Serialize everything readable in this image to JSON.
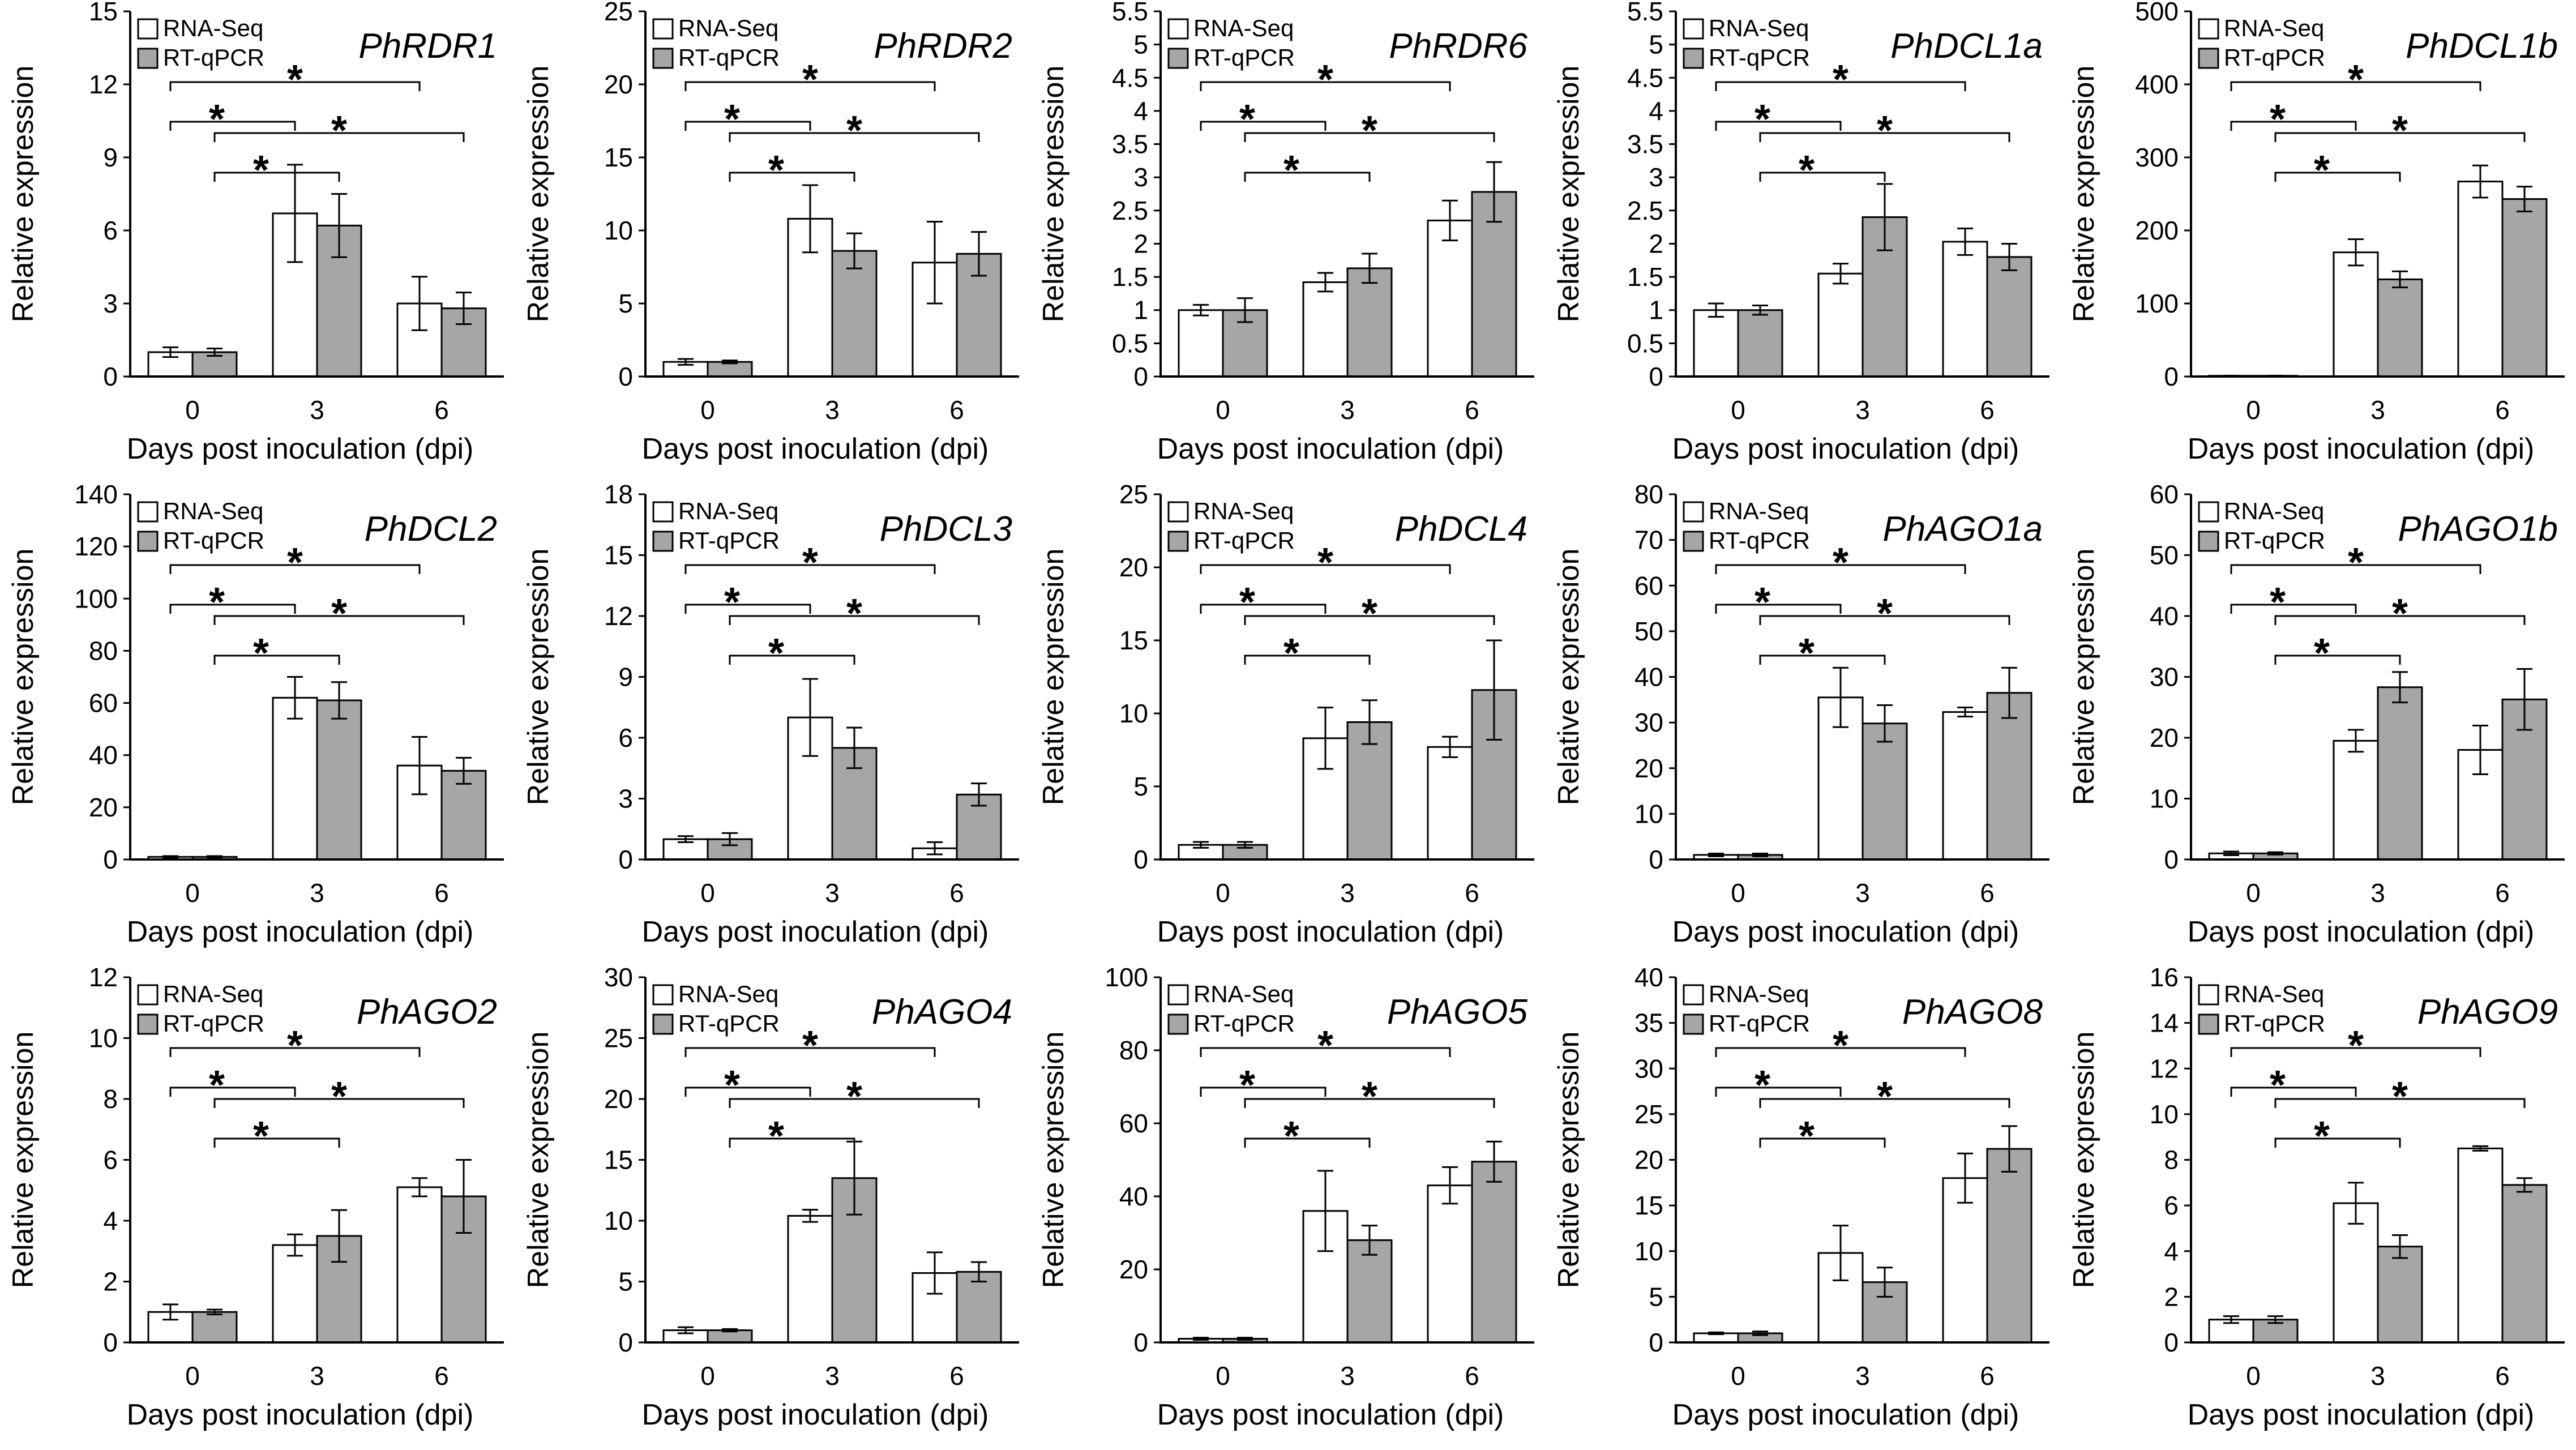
{
  "colors": {
    "rna_seq": "#ffffff",
    "rt_qpcr": "#a6a6a6",
    "axis": "#000000"
  },
  "chart_data": [
    {
      "type": "bar",
      "title": "PhRDR1",
      "xlabel": "Days post inoculation (dpi)",
      "ylabel": "Relative expression",
      "categories": [
        "0",
        "3",
        "6"
      ],
      "ylim": [
        0,
        15
      ],
      "yticks": [
        "0",
        "3",
        "6",
        "9",
        "12",
        "15"
      ],
      "series": [
        {
          "name": "RNA-Seq",
          "values": [
            1.0,
            6.7,
            3.0
          ],
          "errors": [
            0.2,
            2.0,
            1.1
          ]
        },
        {
          "name": "RT-qPCR",
          "values": [
            1.0,
            6.2,
            2.8
          ],
          "errors": [
            0.15,
            1.3,
            0.65
          ]
        }
      ],
      "significance": [
        "*",
        "*",
        "*",
        "*"
      ]
    },
    {
      "type": "bar",
      "title": "PhRDR2",
      "xlabel": "Days post inoculation (dpi)",
      "ylabel": "Relative expression",
      "categories": [
        "0",
        "3",
        "6"
      ],
      "ylim": [
        0,
        25
      ],
      "yticks": [
        "0",
        "5",
        "10",
        "15",
        "20",
        "25"
      ],
      "series": [
        {
          "name": "RNA-Seq",
          "values": [
            1.0,
            10.8,
            7.8
          ],
          "errors": [
            0.2,
            2.3,
            2.8
          ]
        },
        {
          "name": "RT-qPCR",
          "values": [
            1.0,
            8.6,
            8.4
          ],
          "errors": [
            0.1,
            1.2,
            1.5
          ]
        }
      ],
      "significance": [
        "*",
        "*",
        "*",
        "*"
      ]
    },
    {
      "type": "bar",
      "title": "PhRDR6",
      "xlabel": "Days post inoculation (dpi)",
      "ylabel": "Relative expression",
      "categories": [
        "0",
        "3",
        "6"
      ],
      "ylim": [
        0,
        5.5
      ],
      "yticks": [
        "0",
        "0.5",
        "1",
        "1.5",
        "2",
        "2.5",
        "3",
        "3.5",
        "4",
        "4.5",
        "5",
        "5.5"
      ],
      "series": [
        {
          "name": "RNA-Seq",
          "values": [
            1.0,
            1.42,
            2.35
          ],
          "errors": [
            0.08,
            0.14,
            0.3
          ]
        },
        {
          "name": "RT-qPCR",
          "values": [
            1.0,
            1.63,
            2.78
          ],
          "errors": [
            0.18,
            0.22,
            0.45
          ]
        }
      ],
      "significance": [
        "*",
        "*",
        "*",
        "*"
      ]
    },
    {
      "type": "bar",
      "title": "PhDCL1a",
      "xlabel": "Days post inoculation (dpi)",
      "ylabel": "Relative expression",
      "categories": [
        "0",
        "3",
        "6"
      ],
      "ylim": [
        0,
        5.5
      ],
      "yticks": [
        "0",
        "0.5",
        "1",
        "1.5",
        "2",
        "2.5",
        "3",
        "3.5",
        "4",
        "4.5",
        "5",
        "5.5"
      ],
      "series": [
        {
          "name": "RNA-Seq",
          "values": [
            1.0,
            1.55,
            2.03
          ],
          "errors": [
            0.1,
            0.15,
            0.2
          ]
        },
        {
          "name": "RT-qPCR",
          "values": [
            1.0,
            2.4,
            1.8
          ],
          "errors": [
            0.07,
            0.5,
            0.2
          ]
        }
      ],
      "significance": [
        "*",
        "*",
        "*",
        "*"
      ]
    },
    {
      "type": "bar",
      "title": "PhDCL1b",
      "xlabel": "Days post inoculation (dpi)",
      "ylabel": "Relative expression",
      "categories": [
        "0",
        "3",
        "6"
      ],
      "ylim": [
        0,
        500
      ],
      "yticks": [
        "0",
        "100",
        "200",
        "300",
        "400",
        "500"
      ],
      "series": [
        {
          "name": "RNA-Seq",
          "values": [
            1,
            170,
            267
          ],
          "errors": [
            0.2,
            18,
            22
          ]
        },
        {
          "name": "RT-qPCR",
          "values": [
            1,
            133,
            243
          ],
          "errors": [
            0.2,
            11,
            17
          ]
        }
      ],
      "significance": [
        "*",
        "*",
        "*",
        "*"
      ]
    },
    {
      "type": "bar",
      "title": "PhDCL2",
      "xlabel": "Days post inoculation (dpi)",
      "ylabel": "Relative expression",
      "categories": [
        "0",
        "3",
        "6"
      ],
      "ylim": [
        0,
        140
      ],
      "yticks": [
        "0",
        "20",
        "40",
        "60",
        "80",
        "100",
        "120",
        "140"
      ],
      "series": [
        {
          "name": "RNA-Seq",
          "values": [
            1,
            62,
            36
          ],
          "errors": [
            0.3,
            8,
            11
          ]
        },
        {
          "name": "RT-qPCR",
          "values": [
            1,
            61,
            34
          ],
          "errors": [
            0.3,
            7,
            5
          ]
        }
      ],
      "significance": [
        "*",
        "*",
        "*",
        "*"
      ]
    },
    {
      "type": "bar",
      "title": "PhDCL3",
      "xlabel": "Days post inoculation (dpi)",
      "ylabel": "Relative expression",
      "categories": [
        "0",
        "3",
        "6"
      ],
      "ylim": [
        0,
        18
      ],
      "yticks": [
        "0",
        "3",
        "6",
        "9",
        "12",
        "15",
        "18"
      ],
      "series": [
        {
          "name": "RNA-Seq",
          "values": [
            1.0,
            7.0,
            0.55
          ],
          "errors": [
            0.15,
            1.9,
            0.3
          ]
        },
        {
          "name": "RT-qPCR",
          "values": [
            1.0,
            5.5,
            3.2
          ],
          "errors": [
            0.3,
            1.0,
            0.55
          ]
        }
      ],
      "significance": [
        "*",
        "*",
        "*",
        "*"
      ]
    },
    {
      "type": "bar",
      "title": "PhDCL4",
      "xlabel": "Days post inoculation (dpi)",
      "ylabel": "Relative expression",
      "categories": [
        "0",
        "3",
        "6"
      ],
      "ylim": [
        0,
        25
      ],
      "yticks": [
        "0",
        "5",
        "10",
        "15",
        "20",
        "25"
      ],
      "series": [
        {
          "name": "RNA-Seq",
          "values": [
            1.0,
            8.3,
            7.7
          ],
          "errors": [
            0.2,
            2.1,
            0.7
          ]
        },
        {
          "name": "RT-qPCR",
          "values": [
            1.0,
            9.4,
            11.6
          ],
          "errors": [
            0.2,
            1.5,
            3.4
          ]
        }
      ],
      "significance": [
        "*",
        "*",
        "*",
        "*"
      ]
    },
    {
      "type": "bar",
      "title": "PhAGO1a",
      "xlabel": "Days post inoculation (dpi)",
      "ylabel": "Relative expression",
      "categories": [
        "0",
        "3",
        "6"
      ],
      "ylim": [
        0,
        80
      ],
      "yticks": [
        "0",
        "10",
        "20",
        "30",
        "40",
        "50",
        "60",
        "70",
        "80"
      ],
      "series": [
        {
          "name": "RNA-Seq",
          "values": [
            1,
            35.5,
            32.3
          ],
          "errors": [
            0.3,
            6.5,
            1.0
          ]
        },
        {
          "name": "RT-qPCR",
          "values": [
            1,
            29.8,
            36.5
          ],
          "errors": [
            0.3,
            4.0,
            5.5
          ]
        }
      ],
      "significance": [
        "*",
        "*",
        "*",
        "*"
      ]
    },
    {
      "type": "bar",
      "title": "PhAGO1b",
      "xlabel": "Days post inoculation (dpi)",
      "ylabel": "Relative expression",
      "categories": [
        "0",
        "3",
        "6"
      ],
      "ylim": [
        0,
        60
      ],
      "yticks": [
        "0",
        "10",
        "20",
        "30",
        "40",
        "50",
        "60"
      ],
      "series": [
        {
          "name": "RNA-Seq",
          "values": [
            1,
            19.5,
            18.0
          ],
          "errors": [
            0.3,
            1.8,
            4.0
          ]
        },
        {
          "name": "RT-qPCR",
          "values": [
            1,
            28.3,
            26.3
          ],
          "errors": [
            0.2,
            2.5,
            5.0
          ]
        }
      ],
      "significance": [
        "*",
        "*",
        "*",
        "*"
      ]
    },
    {
      "type": "bar",
      "title": "PhAGO2",
      "xlabel": "Days post inoculation (dpi)",
      "ylabel": "Relative expression",
      "categories": [
        "0",
        "3",
        "6"
      ],
      "ylim": [
        0,
        12
      ],
      "yticks": [
        "0",
        "2",
        "4",
        "6",
        "8",
        "10",
        "12"
      ],
      "series": [
        {
          "name": "RNA-Seq",
          "values": [
            1.0,
            3.2,
            5.1
          ],
          "errors": [
            0.25,
            0.35,
            0.3
          ]
        },
        {
          "name": "RT-qPCR",
          "values": [
            1.0,
            3.5,
            4.8
          ],
          "errors": [
            0.08,
            0.85,
            1.2
          ]
        }
      ],
      "significance": [
        "*",
        "*",
        "*",
        "*"
      ]
    },
    {
      "type": "bar",
      "title": "PhAGO4",
      "xlabel": "Days post inoculation (dpi)",
      "ylabel": "Relative expression",
      "categories": [
        "0",
        "3",
        "6"
      ],
      "ylim": [
        0,
        30
      ],
      "yticks": [
        "0",
        "5",
        "10",
        "15",
        "20",
        "25",
        "30"
      ],
      "series": [
        {
          "name": "RNA-Seq",
          "values": [
            1.0,
            10.4,
            5.7
          ],
          "errors": [
            0.25,
            0.5,
            1.7
          ]
        },
        {
          "name": "RT-qPCR",
          "values": [
            1.0,
            13.5,
            5.8
          ],
          "errors": [
            0.1,
            3.0,
            0.8
          ]
        }
      ],
      "significance": [
        "*",
        "*",
        "*",
        "*"
      ]
    },
    {
      "type": "bar",
      "title": "PhAGO5",
      "xlabel": "Days post inoculation (dpi)",
      "ylabel": "Relative expression",
      "categories": [
        "0",
        "3",
        "6"
      ],
      "ylim": [
        0,
        100
      ],
      "yticks": [
        "0",
        "20",
        "40",
        "60",
        "80",
        "100"
      ],
      "series": [
        {
          "name": "RNA-Seq",
          "values": [
            1,
            36,
            43
          ],
          "errors": [
            0.3,
            11,
            5
          ]
        },
        {
          "name": "RT-qPCR",
          "values": [
            1,
            28,
            49.5
          ],
          "errors": [
            0.3,
            4,
            5.5
          ]
        }
      ],
      "significance": [
        "*",
        "*",
        "*",
        "*"
      ]
    },
    {
      "type": "bar",
      "title": "PhAGO8",
      "xlabel": "Days post inoculation (dpi)",
      "ylabel": "Relative expression",
      "categories": [
        "0",
        "3",
        "6"
      ],
      "ylim": [
        0,
        40
      ],
      "yticks": [
        "0",
        "5",
        "10",
        "15",
        "20",
        "25",
        "30",
        "35",
        "40"
      ],
      "series": [
        {
          "name": "RNA-Seq",
          "values": [
            1.0,
            9.8,
            18.0
          ],
          "errors": [
            0.1,
            3.0,
            2.7
          ]
        },
        {
          "name": "RT-qPCR",
          "values": [
            1.0,
            6.6,
            21.2
          ],
          "errors": [
            0.2,
            1.6,
            2.5
          ]
        }
      ],
      "significance": [
        "*",
        "*",
        "*",
        "*"
      ]
    },
    {
      "type": "bar",
      "title": "PhAGO9",
      "xlabel": "Days post inoculation (dpi)",
      "ylabel": "Relative expression",
      "categories": [
        "0",
        "3",
        "6"
      ],
      "ylim": [
        0,
        16
      ],
      "yticks": [
        "0",
        "2",
        "4",
        "6",
        "8",
        "10",
        "12",
        "14",
        "16"
      ],
      "series": [
        {
          "name": "RNA-Seq",
          "values": [
            1.0,
            6.1,
            8.5
          ],
          "errors": [
            0.15,
            0.9,
            0.1
          ]
        },
        {
          "name": "RT-qPCR",
          "values": [
            1.0,
            4.2,
            6.9
          ],
          "errors": [
            0.15,
            0.5,
            0.3
          ]
        }
      ],
      "significance": [
        "*",
        "*",
        "*",
        "*"
      ]
    }
  ]
}
